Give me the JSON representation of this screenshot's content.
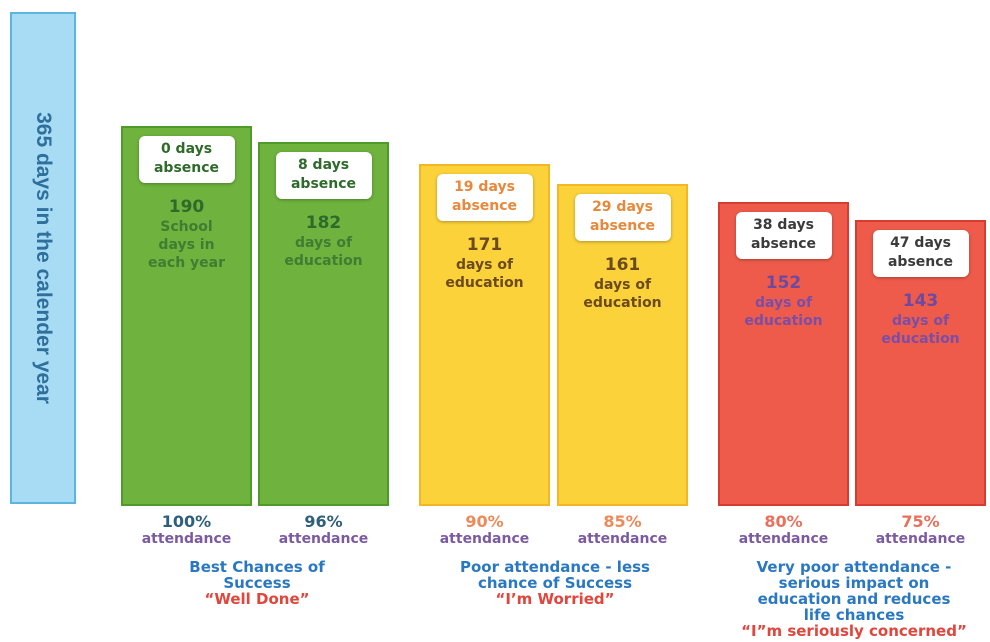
{
  "year_axis_label": "365 days in the calender year",
  "colors": {
    "green": "#6fb33e",
    "green_border": "#4e9a2a",
    "yellow": "#fbd23a",
    "yellow_border": "#f4b623",
    "red": "#ee5b4a",
    "red_border": "#d63c2f",
    "attendance_purple": "#7b5aa3",
    "group_blue": "#2a78c2"
  },
  "chart_data": {
    "type": "bar",
    "title": "",
    "xlabel": "",
    "ylabel": "365 days in the calender year",
    "ylim": [
      0,
      365
    ],
    "categories": [
      "100%",
      "96%",
      "90%",
      "85%",
      "80%",
      "75%"
    ],
    "series": [
      {
        "values": [
          190,
          182,
          171,
          161,
          152,
          143
        ]
      }
    ],
    "bars": [
      {
        "attendance_pct": "100%",
        "attendance_word": "attendance",
        "absence_line1": "0 days",
        "absence_line2": "absence",
        "days_num": "190",
        "days_text": [
          "School",
          "days in",
          "each year"
        ],
        "color": "green"
      },
      {
        "attendance_pct": "96%",
        "attendance_word": "attendance",
        "absence_line1": "8 days",
        "absence_line2": "absence",
        "days_num": "182",
        "days_text": [
          "days of",
          "education"
        ],
        "color": "green"
      },
      {
        "attendance_pct": "90%",
        "attendance_word": "attendance",
        "absence_line1": "19 days",
        "absence_line2": "absence",
        "days_num": "171",
        "days_text": [
          "days of",
          "education"
        ],
        "color": "yellow"
      },
      {
        "attendance_pct": "85%",
        "attendance_word": "attendance",
        "absence_line1": "29 days",
        "absence_line2": "absence",
        "days_num": "161",
        "days_text": [
          "days of",
          "education"
        ],
        "color": "yellow"
      },
      {
        "attendance_pct": "80%",
        "attendance_word": "attendance",
        "absence_line1": "38 days",
        "absence_line2": "absence",
        "days_num": "152",
        "days_text": [
          "days of",
          "education"
        ],
        "color": "red"
      },
      {
        "attendance_pct": "75%",
        "attendance_word": "attendance",
        "absence_line1": "47 days",
        "absence_line2": "absence",
        "days_num": "143",
        "days_text": [
          "days of",
          "education"
        ],
        "color": "red"
      }
    ],
    "groups": [
      {
        "lines": [
          "Best Chances of",
          "Success"
        ],
        "quote": "“Well Done”"
      },
      {
        "lines": [
          "Poor attendance - less",
          "chance of Success"
        ],
        "quote": "“I’m Worried”"
      },
      {
        "lines": [
          "Very poor attendance -",
          "serious impact on",
          "education and reduces",
          "life chances"
        ],
        "quote": "“I”m seriously concerned”"
      }
    ]
  }
}
